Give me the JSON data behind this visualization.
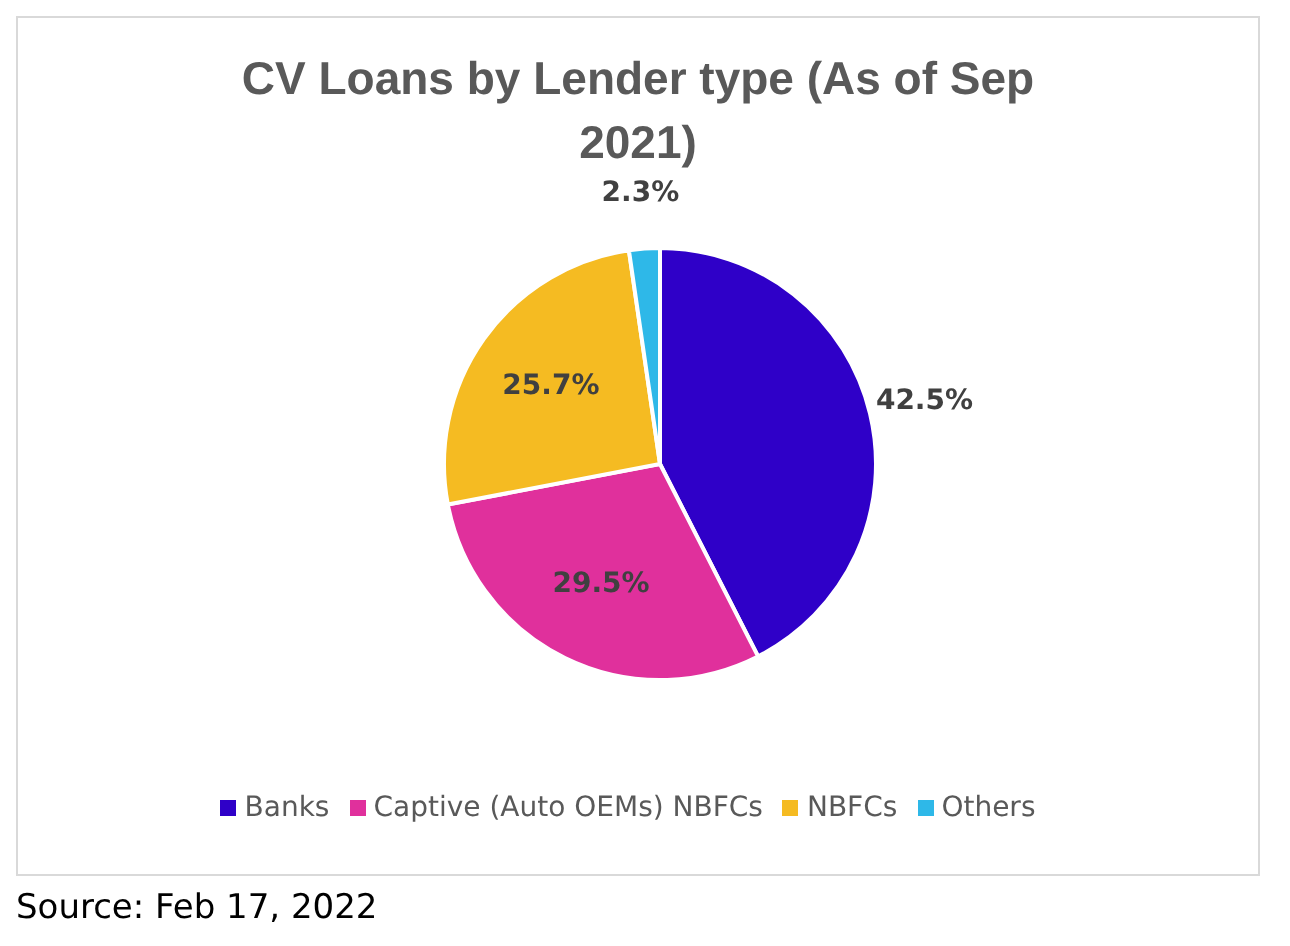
{
  "chart_data": {
    "type": "pie",
    "title": "CV Loans by Lender type (As of Sep 2021)",
    "categories": [
      "Banks",
      "Captive (Auto OEMs) NBFCs",
      "NBFCs",
      "Others"
    ],
    "values": [
      42.5,
      29.5,
      25.7,
      2.3
    ],
    "colors": [
      "#2f00c8",
      "#e0309c",
      "#f5bb22",
      "#2eb8e8"
    ],
    "value_labels": [
      "42.5%",
      "29.5%",
      "25.7%",
      "2.3%"
    ],
    "legend": "bottom",
    "annotations": [
      "Source: Feb 17, 2022"
    ]
  }
}
